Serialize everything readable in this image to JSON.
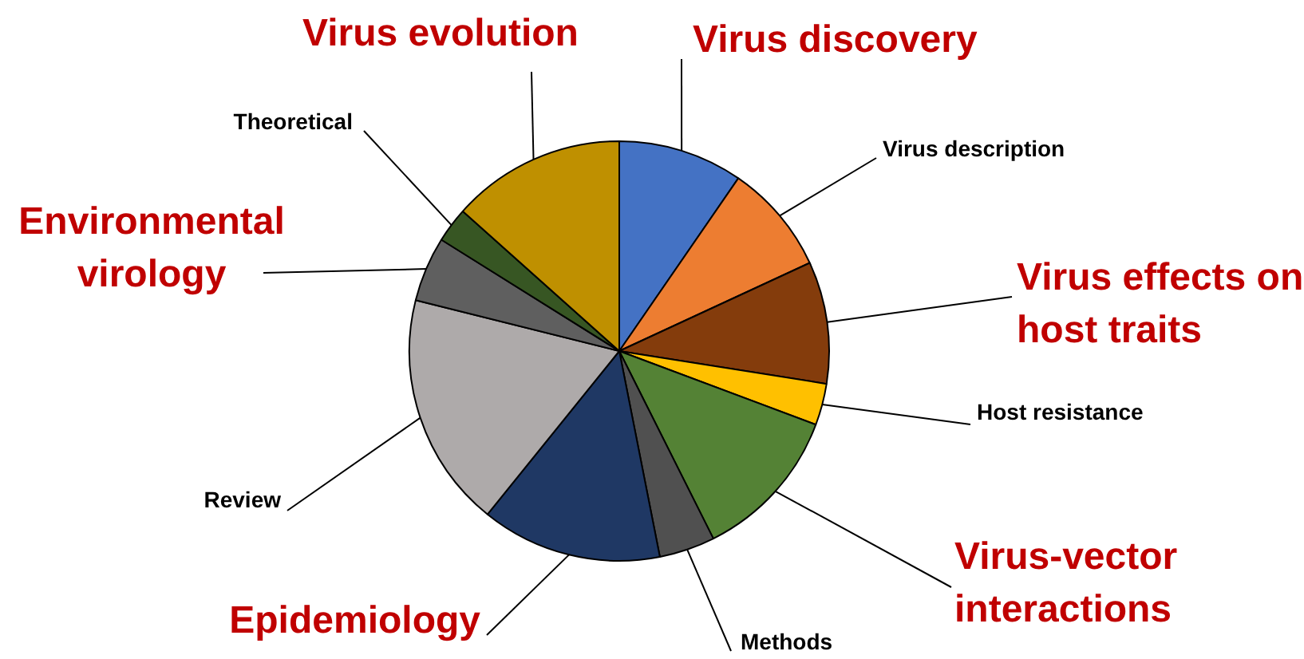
{
  "chart_data": {
    "type": "pie",
    "categories": [
      "Virus discovery",
      "Virus description",
      "Virus effects on host traits",
      "Host resistance",
      "Virus-vector interactions",
      "Methods",
      "Epidemiology",
      "Review",
      "Environmental virology",
      "Theoretical",
      "Virus evolution"
    ],
    "values": [
      9.6,
      8.5,
      9.4,
      3.2,
      11.9,
      4.3,
      13.9,
      18.1,
      5.0,
      2.7,
      13.4
    ],
    "colors": [
      "#4472c4",
      "#ed7d31",
      "#843c0c",
      "#ffc000",
      "#548235",
      "#505050",
      "#1f3864",
      "#aeaaaa",
      "#5f5f5f",
      "#375623",
      "#bf9000"
    ],
    "legend": false
  }
}
